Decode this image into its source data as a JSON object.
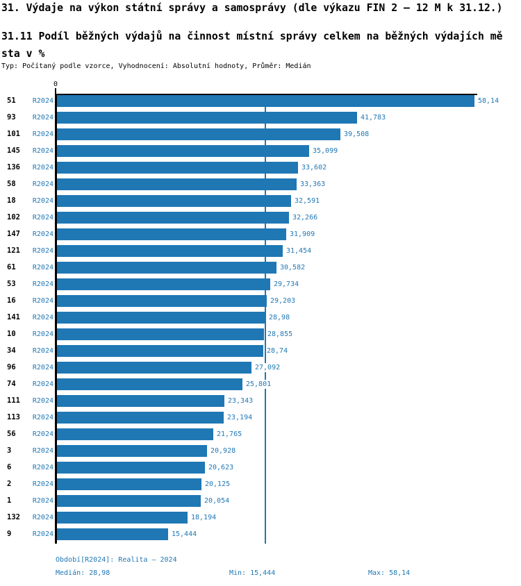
{
  "header": {
    "title": "31. Výdaje na výkon státní správy a samosprávy (dle výkazu FIN 2 – 12 M k 31.12.)",
    "subtitle_line1": "31.11 Podíl běžných výdajů na činnost místní správy celkem na běžných výdajích mě",
    "subtitle_line2": "sta v %",
    "meta": "Typ: Počítaný podle vzorce, Vyhodnocení: Absolutní hodnoty, Průměr: Medián"
  },
  "chart_data": {
    "type": "bar",
    "orientation": "horizontal",
    "series_label": "R2024",
    "axis_zero_label": "0",
    "xmax": 58.14,
    "xlim": [
      0,
      58.14
    ],
    "median": 28.98,
    "min": 15.444,
    "max": 58.14,
    "categories": [
      "51",
      "93",
      "101",
      "145",
      "136",
      "58",
      "18",
      "102",
      "147",
      "121",
      "61",
      "53",
      "16",
      "141",
      "10",
      "34",
      "96",
      "74",
      "111",
      "113",
      "56",
      "3",
      "6",
      "2",
      "1",
      "132",
      "9"
    ],
    "values": [
      58.14,
      41.783,
      39.508,
      35.099,
      33.602,
      33.363,
      32.591,
      32.266,
      31.909,
      31.454,
      30.582,
      29.734,
      29.203,
      28.98,
      28.855,
      28.74,
      27.092,
      25.801,
      23.343,
      23.194,
      21.765,
      20.928,
      20.623,
      20.125,
      20.054,
      18.194,
      15.444
    ],
    "value_labels": [
      "58,14",
      "41,783",
      "39,508",
      "35,099",
      "33,602",
      "33,363",
      "32,591",
      "32,266",
      "31,909",
      "31,454",
      "30,582",
      "29,734",
      "29,203",
      "28,98",
      "28,855",
      "28,74",
      "27,092",
      "25,801",
      "23,343",
      "23,194",
      "21,765",
      "20,928",
      "20,623",
      "20,125",
      "20,054",
      "18,194",
      "15,444"
    ],
    "colors": {
      "bar": "#1f77b4",
      "text_accent": "#1f77b4",
      "axis": "#000000",
      "median_line": "#1f77b4"
    }
  },
  "footer": {
    "period": "Období[R2024]: Realita – 2024",
    "median": "Medián: 28,98",
    "min": "Min: 15,444",
    "max": "Max: 58,14"
  }
}
